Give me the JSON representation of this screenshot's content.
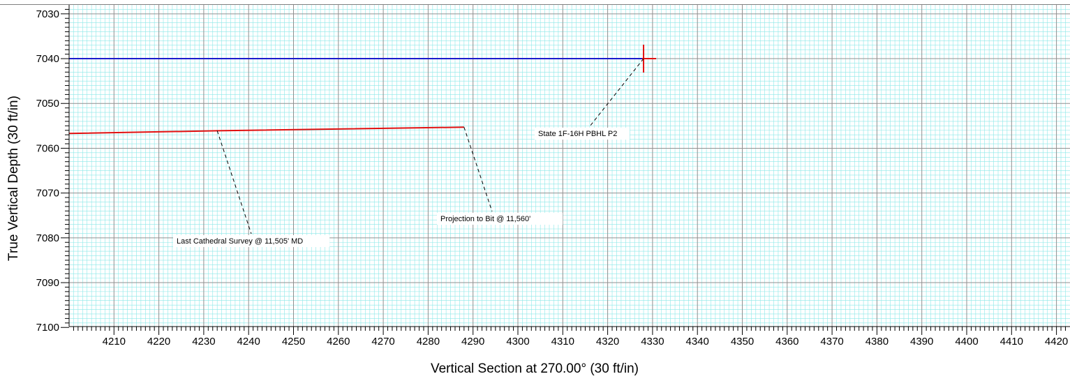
{
  "chart_data": {
    "type": "line",
    "xlabel": "Vertical Section at 270.00° (30 ft/in)",
    "ylabel": "True Vertical Depth (30 ft/in)",
    "xlim": [
      4200,
      4422
    ],
    "ylim": [
      7100,
      7028
    ],
    "y_inverted": true,
    "grid": true,
    "x_ticks": [
      4210,
      4220,
      4230,
      4240,
      4250,
      4260,
      4270,
      4280,
      4290,
      4300,
      4310,
      4320,
      4330,
      4340,
      4350,
      4360,
      4370,
      4380,
      4390,
      4400,
      4410,
      4420
    ],
    "y_ticks": [
      7030,
      7040,
      7050,
      7060,
      7070,
      7080,
      7090,
      7100
    ],
    "series": [
      {
        "color": "#1a1acc",
        "style": "line",
        "x": [
          4200,
          4328
        ],
        "y": [
          7040,
          7040
        ]
      },
      {
        "color": "#e01010",
        "style": "line",
        "x": [
          4200,
          4233,
          4288
        ],
        "y": [
          7056.7,
          7056.1,
          7055.3
        ]
      }
    ],
    "target_marker": {
      "x": 4328,
      "y": 7040,
      "color": "#e01010"
    },
    "annotations": [
      {
        "text": "Last Cathedral Survey @ 11,505' MD",
        "point": [
          4233,
          7056.1
        ]
      },
      {
        "text": "Projection to Bit @ 11,560'",
        "point": [
          4288,
          7055.3
        ]
      },
      {
        "text": "State 1F-16H PBHL P2",
        "point": [
          4328,
          7040
        ]
      }
    ],
    "colors": {
      "minor_grid": "#8ae8e8",
      "major_grid": "#909090",
      "axis": "#000000"
    }
  }
}
